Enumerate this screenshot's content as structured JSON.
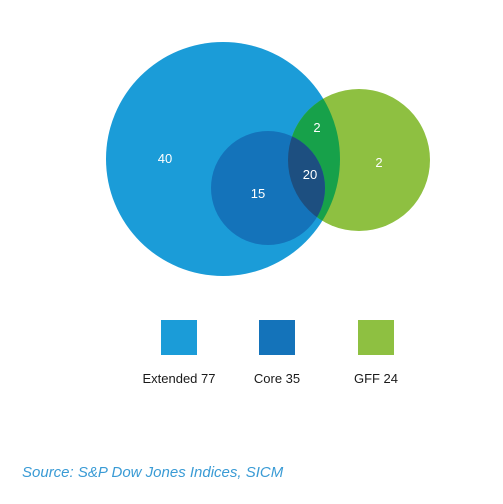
{
  "diagram": {
    "type": "venn",
    "sets": [
      {
        "key": "extended",
        "name": "Extended",
        "size": 77,
        "color": "#1b9cd8"
      },
      {
        "key": "core",
        "name": "Core",
        "size": 35,
        "color": "#1473ba"
      },
      {
        "key": "gff",
        "name": "GFF",
        "size": 24,
        "color": "#8ec041"
      }
    ],
    "regions": [
      {
        "key": "extended_only",
        "label": "40"
      },
      {
        "key": "core_not_gff",
        "label": "15"
      },
      {
        "key": "core_and_gff",
        "label": "20"
      },
      {
        "key": "extended_and_gff_not_core",
        "label": "2"
      },
      {
        "key": "gff_only",
        "label": "2"
      }
    ],
    "region_colors": {
      "extended_and_gff": "#17a14a",
      "core_and_gff": "#1d4f80"
    }
  },
  "legend": {
    "items": [
      {
        "label": "Extended 77",
        "color": "#1b9cd8"
      },
      {
        "label": "Core 35",
        "color": "#1473ba"
      },
      {
        "label": "GFF 24",
        "color": "#8ec041"
      }
    ]
  },
  "source": "Source: S&P Dow Jones Indices, SICM"
}
